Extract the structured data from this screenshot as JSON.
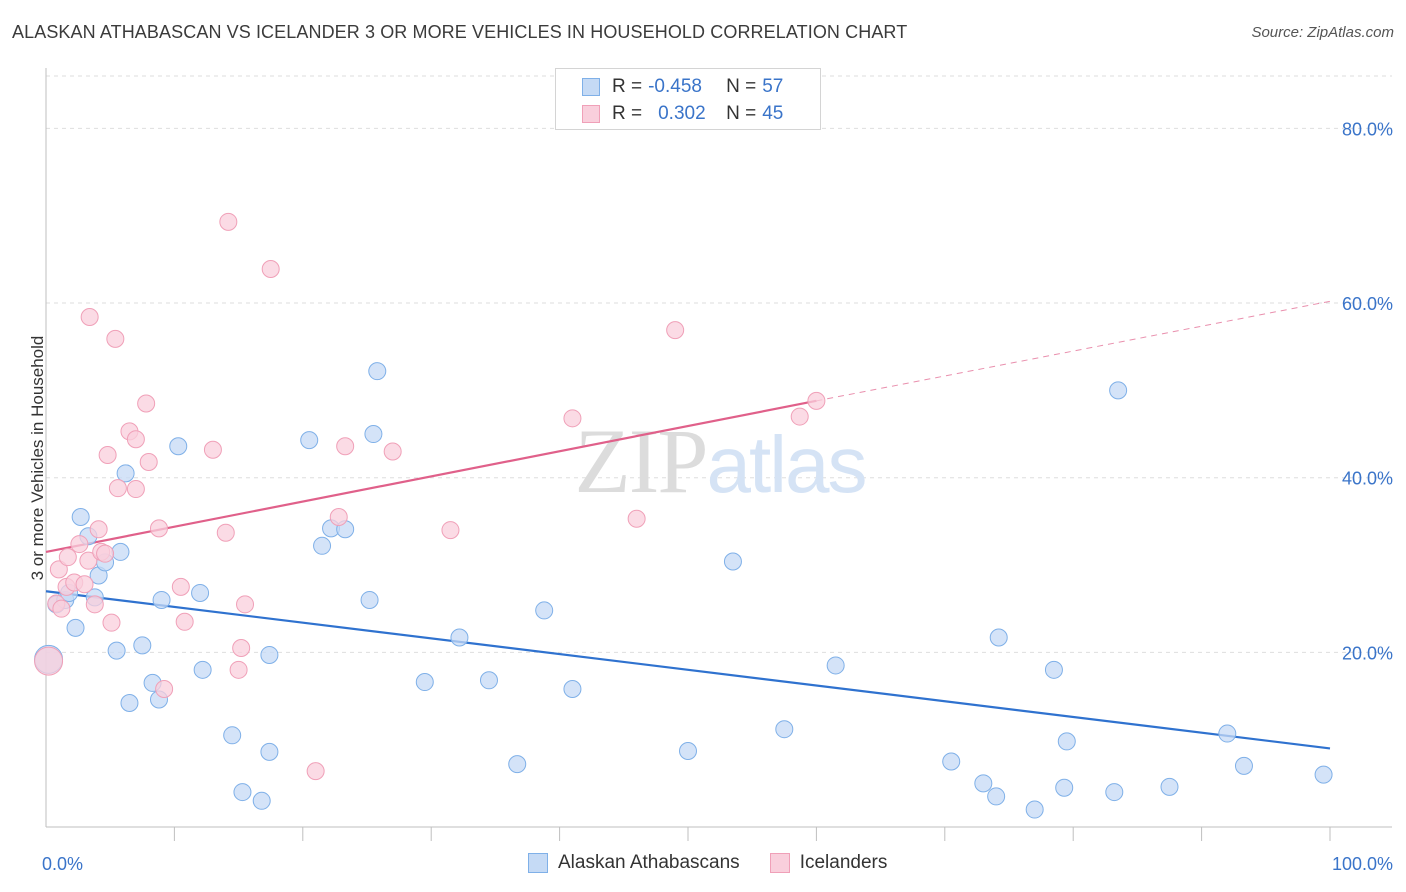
{
  "chart_data": {
    "type": "scatter",
    "title": "ALASKAN ATHABASCAN VS ICELANDER 3 OR MORE VEHICLES IN HOUSEHOLD CORRELATION CHART",
    "source": "Source: ZipAtlas.com",
    "xlabel": "",
    "ylabel": "3 or more Vehicles in Household",
    "xlim": [
      0,
      100
    ],
    "ylim": [
      0,
      86
    ],
    "x_tick_labels": [
      {
        "value": 0,
        "label": "0.0%"
      },
      {
        "value": 100,
        "label": "100.0%"
      }
    ],
    "y_tick_labels": [
      {
        "value": 20,
        "label": "20.0%"
      },
      {
        "value": 40,
        "label": "40.0%"
      },
      {
        "value": 60,
        "label": "60.0%"
      },
      {
        "value": 80,
        "label": "80.0%"
      }
    ],
    "grid": true,
    "legend_position": "top-center",
    "watermark": "ZIPatlas",
    "series": [
      {
        "name": "Alaskan Athabascans",
        "color": "#7fb0e8",
        "fill": "#c5daf5",
        "line_color": "#2f72cf",
        "r_label": "R =",
        "r_value": "-0.458",
        "n_label": "N =",
        "n_value": "57",
        "trend": {
          "x": [
            0,
            100
          ],
          "y": [
            27.0,
            9.0
          ],
          "dashed_from": null
        },
        "points": [
          [
            0.2,
            19.2
          ],
          [
            0.8,
            25.5
          ],
          [
            1.5,
            26.0
          ],
          [
            1.8,
            26.8
          ],
          [
            2.3,
            22.8
          ],
          [
            2.7,
            35.5
          ],
          [
            3.3,
            33.3
          ],
          [
            3.8,
            26.3
          ],
          [
            4.1,
            28.8
          ],
          [
            4.6,
            30.3
          ],
          [
            5.8,
            31.5
          ],
          [
            5.5,
            20.2
          ],
          [
            6.2,
            40.5
          ],
          [
            6.5,
            14.2
          ],
          [
            7.5,
            20.8
          ],
          [
            8.3,
            16.5
          ],
          [
            8.8,
            14.6
          ],
          [
            9.0,
            26.0
          ],
          [
            10.3,
            43.6
          ],
          [
            12.0,
            26.8
          ],
          [
            12.2,
            18.0
          ],
          [
            14.5,
            10.5
          ],
          [
            15.3,
            4.0
          ],
          [
            16.8,
            3.0
          ],
          [
            17.4,
            8.6
          ],
          [
            17.4,
            19.7
          ],
          [
            20.5,
            44.3
          ],
          [
            21.5,
            32.2
          ],
          [
            22.2,
            34.2
          ],
          [
            23.3,
            34.1
          ],
          [
            25.5,
            45.0
          ],
          [
            25.8,
            52.2
          ],
          [
            25.2,
            26.0
          ],
          [
            29.5,
            16.6
          ],
          [
            32.2,
            21.7
          ],
          [
            34.5,
            16.8
          ],
          [
            36.7,
            7.2
          ],
          [
            38.8,
            24.8
          ],
          [
            41.0,
            15.8
          ],
          [
            50.0,
            8.7
          ],
          [
            53.5,
            30.4
          ],
          [
            57.5,
            11.2
          ],
          [
            61.5,
            18.5
          ],
          [
            70.5,
            7.5
          ],
          [
            73.0,
            5.0
          ],
          [
            74.0,
            3.5
          ],
          [
            74.2,
            21.7
          ],
          [
            77.0,
            2.0
          ],
          [
            78.5,
            18.0
          ],
          [
            79.3,
            4.5
          ],
          [
            79.5,
            9.8
          ],
          [
            83.5,
            50.0
          ],
          [
            83.2,
            4.0
          ],
          [
            87.5,
            4.6
          ],
          [
            92.0,
            10.7
          ],
          [
            93.3,
            7.0
          ],
          [
            99.5,
            6.0
          ]
        ]
      },
      {
        "name": "Icelanders",
        "color": "#f0a0b8",
        "fill": "#f9cfdc",
        "line_color": "#e0608a",
        "r_label": "R =",
        "r_value": "0.302",
        "n_label": "N =",
        "n_value": "45",
        "trend": {
          "x": [
            0,
            60,
            100
          ],
          "y": [
            31.5,
            48.8,
            60.2
          ],
          "dashed_from": 60
        },
        "points": [
          [
            0.2,
            19.0
          ],
          [
            0.8,
            25.6
          ],
          [
            1.0,
            29.5
          ],
          [
            1.2,
            25.0
          ],
          [
            1.6,
            27.5
          ],
          [
            1.7,
            30.9
          ],
          [
            2.2,
            28.0
          ],
          [
            2.6,
            32.4
          ],
          [
            3.0,
            27.8
          ],
          [
            3.3,
            30.5
          ],
          [
            3.4,
            58.4
          ],
          [
            3.8,
            25.5
          ],
          [
            4.1,
            34.1
          ],
          [
            4.3,
            31.5
          ],
          [
            4.6,
            31.3
          ],
          [
            4.8,
            42.6
          ],
          [
            5.1,
            23.4
          ],
          [
            5.4,
            55.9
          ],
          [
            5.6,
            38.8
          ],
          [
            6.5,
            45.3
          ],
          [
            7.0,
            38.7
          ],
          [
            7.0,
            44.4
          ],
          [
            7.8,
            48.5
          ],
          [
            8.0,
            41.8
          ],
          [
            8.8,
            34.2
          ],
          [
            9.2,
            15.8
          ],
          [
            10.5,
            27.5
          ],
          [
            10.8,
            23.5
          ],
          [
            13.0,
            43.2
          ],
          [
            14.0,
            33.7
          ],
          [
            14.2,
            69.3
          ],
          [
            15.0,
            18.0
          ],
          [
            15.2,
            20.5
          ],
          [
            15.5,
            25.5
          ],
          [
            17.5,
            63.9
          ],
          [
            21.0,
            6.4
          ],
          [
            22.8,
            35.5
          ],
          [
            23.3,
            43.6
          ],
          [
            27.0,
            43.0
          ],
          [
            31.5,
            34.0
          ],
          [
            41.0,
            46.8
          ],
          [
            46.0,
            35.3
          ],
          [
            49.0,
            56.9
          ],
          [
            58.7,
            47.0
          ],
          [
            60.0,
            48.8
          ]
        ]
      }
    ]
  }
}
